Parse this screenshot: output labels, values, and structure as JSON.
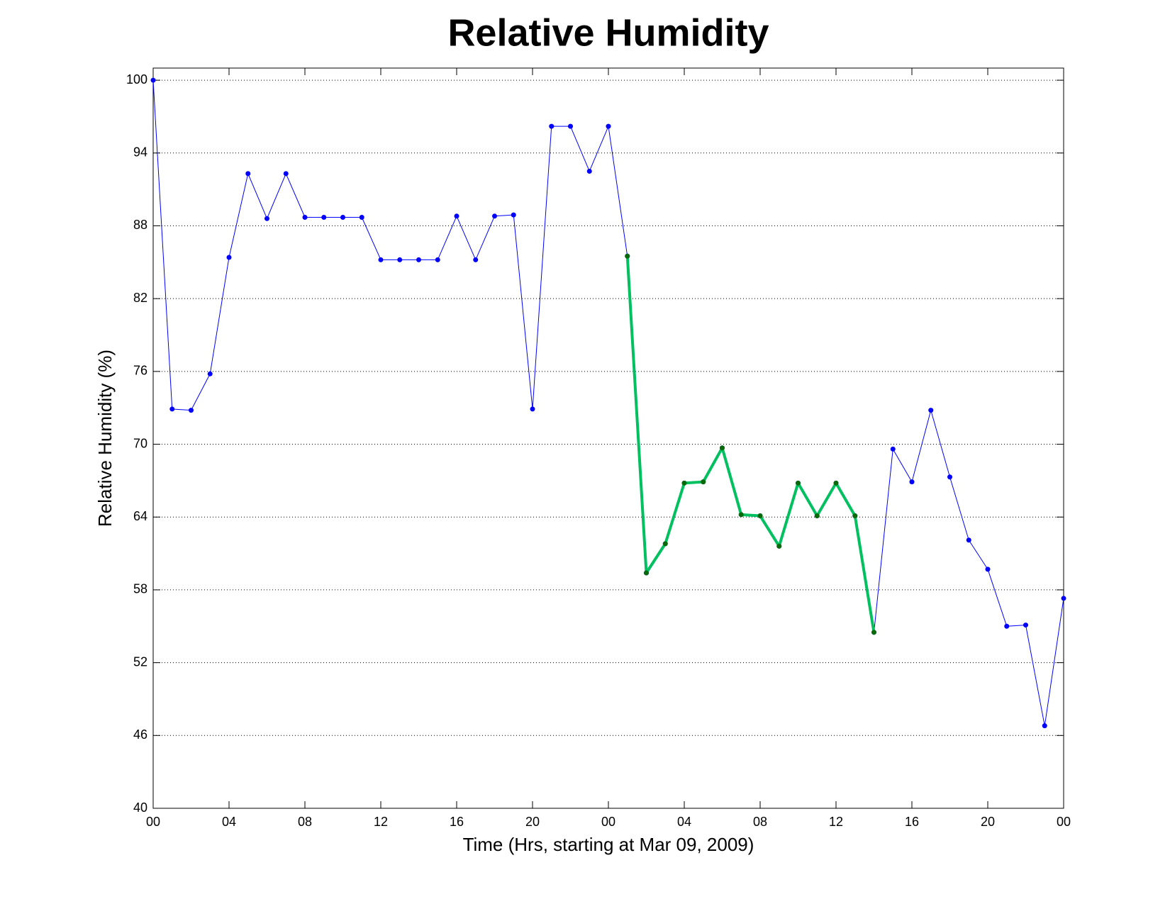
{
  "chart_data": {
    "type": "line",
    "title": "Relative Humidity",
    "x_label": "Time (Hrs, starting at Mar 09, 2009)",
    "y_label": "Relative Humidity (%)",
    "x": [
      0,
      1,
      2,
      3,
      4,
      5,
      6,
      7,
      8,
      9,
      10,
      11,
      12,
      13,
      14,
      15,
      16,
      17,
      18,
      19,
      20,
      21,
      22,
      23,
      24,
      25,
      26,
      27,
      28,
      29,
      30,
      31,
      32,
      33,
      34,
      35,
      36,
      37,
      38,
      39,
      40,
      41,
      42,
      43,
      44,
      45,
      46,
      47,
      48
    ],
    "series": [
      {
        "color": "#0000ff",
        "marker_color": "#0000ff",
        "line_width": 1,
        "values": [
          100,
          72.9,
          72.8,
          75.8,
          85.4,
          92.3,
          88.6,
          92.3,
          88.7,
          88.7,
          88.7,
          88.7,
          85.2,
          85.2,
          85.2,
          85.2,
          88.8,
          85.2,
          88.8,
          88.9,
          72.9,
          96.2,
          96.2,
          92.5,
          96.2,
          85.5,
          59.4,
          61.8,
          66.8,
          66.9,
          69.7,
          64.2,
          64.1,
          61.6,
          66.8,
          64.1,
          66.8,
          64.1,
          54.5,
          69.6,
          66.9,
          72.8,
          67.3,
          62.1,
          59.7,
          55.0,
          55.1,
          46.8,
          57.3
        ]
      },
      {
        "color": "#00c060",
        "marker_color": "#0a6a0a",
        "line_width": 4,
        "values": [
          null,
          null,
          null,
          null,
          null,
          null,
          null,
          null,
          null,
          null,
          null,
          null,
          null,
          null,
          null,
          null,
          null,
          null,
          null,
          null,
          null,
          null,
          null,
          null,
          null,
          85.5,
          59.4,
          61.8,
          66.8,
          66.9,
          69.7,
          64.2,
          64.1,
          61.6,
          66.8,
          64.1,
          66.8,
          64.1,
          54.5,
          null,
          null,
          null,
          null,
          null,
          null,
          null,
          null,
          null,
          null
        ]
      }
    ],
    "xlim": [
      0,
      48
    ],
    "xticks": [
      {
        "value": 0,
        "label": "00"
      },
      {
        "value": 4,
        "label": "04"
      },
      {
        "value": 8,
        "label": "08"
      },
      {
        "value": 12,
        "label": "12"
      },
      {
        "value": 16,
        "label": "16"
      },
      {
        "value": 20,
        "label": "20"
      },
      {
        "value": 24,
        "label": "00"
      },
      {
        "value": 28,
        "label": "04"
      },
      {
        "value": 32,
        "label": "08"
      },
      {
        "value": 36,
        "label": "12"
      },
      {
        "value": 40,
        "label": "16"
      },
      {
        "value": 44,
        "label": "20"
      },
      {
        "value": 48,
        "label": "00"
      }
    ],
    "ylim": [
      40,
      101
    ],
    "yticks": [
      40,
      46,
      52,
      58,
      64,
      70,
      76,
      82,
      88,
      94,
      100
    ],
    "grid": "y"
  }
}
